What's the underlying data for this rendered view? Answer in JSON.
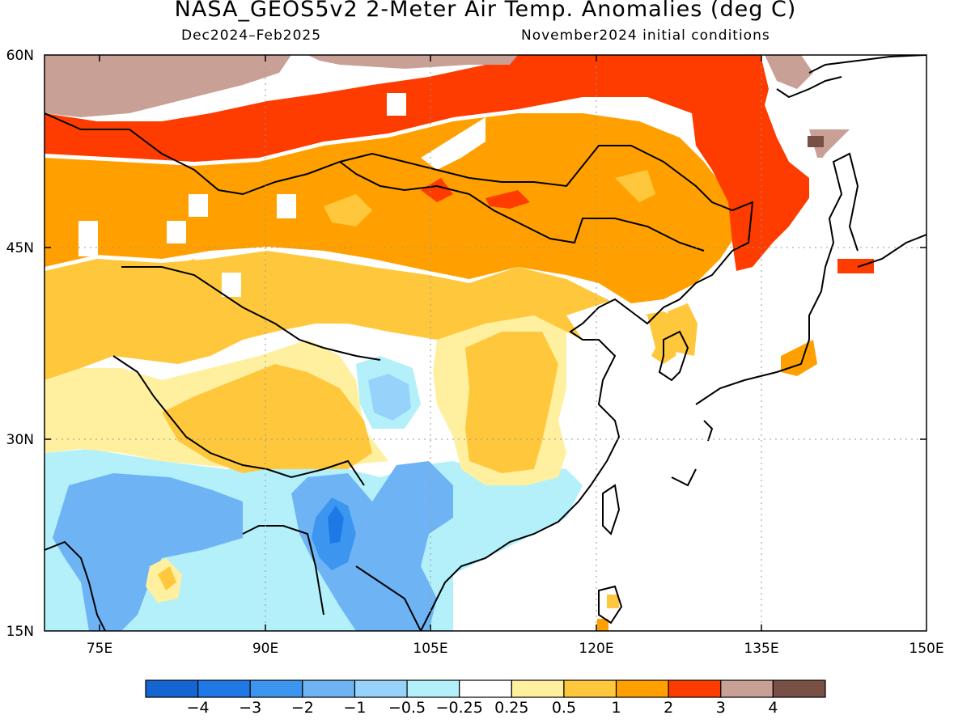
{
  "header": {
    "title": "NASA_GEOS5v2 2-Meter Air Temp. Anomalies (deg C)",
    "period": "Dec2024–Feb2025",
    "init": "November2024 initial conditions"
  },
  "axes": {
    "lon_labels": [
      "75E",
      "90E",
      "105E",
      "120E",
      "135E",
      "150E"
    ],
    "lat_labels": [
      "60N",
      "45N",
      "30N",
      "15N"
    ]
  },
  "colorbar": {
    "labels": [
      "-4",
      "-3",
      "-2",
      "-1",
      "-0.5",
      "-0.25",
      "0.25",
      "0.5",
      "1",
      "2",
      "3",
      "4"
    ],
    "colors": [
      "#1464d2",
      "#1e78e6",
      "#3c96f0",
      "#6eb4f5",
      "#96d2fa",
      "#b4f0fa",
      "#ffffff",
      "#fff0a0",
      "#ffc83c",
      "#ffa000",
      "#ff3c00",
      "#c8a096",
      "#785046"
    ]
  },
  "map_data": {
    "region": {
      "lon": [
        70,
        150
      ],
      "lat": [
        15,
        60
      ]
    },
    "regions": [
      {
        "name": "northwest-russia-band",
        "category": 11,
        "color": "#c8a096"
      },
      {
        "name": "siberia-red-band",
        "category": 10,
        "color": "#ff3c00"
      },
      {
        "name": "mongolia-northern-china",
        "category": 9,
        "color": "#ffa000"
      },
      {
        "name": "central-asia-tibet-southern-china",
        "category": 8,
        "color": "#ffc83c"
      },
      {
        "name": "india-southeast-asia",
        "category": 4,
        "color": "#6eb4f5"
      },
      {
        "name": "myanmar-minimum",
        "category": 2,
        "color": "#1e78e6"
      },
      {
        "name": "far-east-russia",
        "category": 10,
        "color": "#ff3c00"
      },
      {
        "name": "okhotsk-coast",
        "category": 12,
        "color": "#785046"
      },
      {
        "name": "northern-japan",
        "category": 10,
        "color": "#ff3c00"
      }
    ]
  }
}
